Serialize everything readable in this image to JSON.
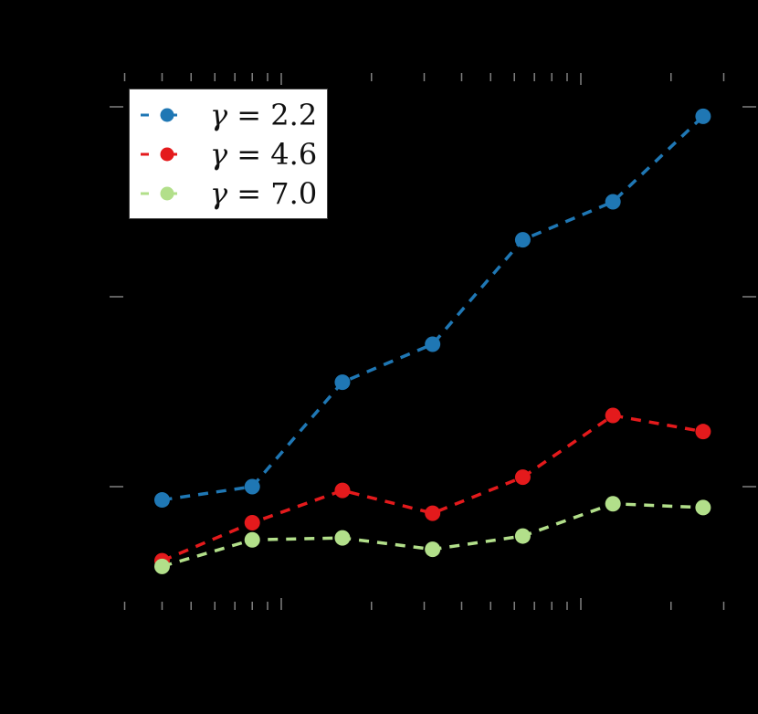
{
  "chart_data": {
    "type": "line",
    "title": "",
    "xlabel": "",
    "ylabel": "",
    "xscale": "log",
    "x_note": "x positions double each step; shown relative to the two visible major log ticks (assumed 10^0 and 10^1 — tick labels not visible)",
    "x": [
      0.4,
      0.8,
      1.6,
      3.2,
      6.4,
      12.8,
      25.6
    ],
    "xlim": [
      0.3,
      38
    ],
    "y_note": "y tick labels not visible; values in units of the major y-tick spacing (lowest major tick = 0)",
    "yticks": [
      0,
      1,
      2
    ],
    "ylim": [
      -0.6,
      2.1
    ],
    "grid": false,
    "legend_position": "upper left",
    "series": [
      {
        "name": "γ = 2.2",
        "gamma": "2.2",
        "color": "#1f77b4",
        "linestyle": "dashed",
        "marker": "circle",
        "values": [
          -0.07,
          0.0,
          0.55,
          0.75,
          1.3,
          1.5,
          1.95
        ]
      },
      {
        "name": "γ = 4.6",
        "gamma": "4.6",
        "color": "#e41a1c",
        "linestyle": "dashed",
        "marker": "circle",
        "values": [
          -0.39,
          -0.19,
          -0.02,
          -0.14,
          0.05,
          0.375,
          0.29
        ]
      },
      {
        "name": "γ = 7.0",
        "gamma": "7.0",
        "color": "#b2df8a",
        "linestyle": "dashed",
        "marker": "circle",
        "values": [
          -0.42,
          -0.28,
          -0.27,
          -0.33,
          -0.26,
          -0.09,
          -0.11
        ]
      }
    ]
  },
  "legend": {
    "items": [
      {
        "symbol": "γ",
        "equals": "=",
        "value": "2.2",
        "color": "#1f77b4"
      },
      {
        "symbol": "γ",
        "equals": "=",
        "value": "4.6",
        "color": "#e41a1c"
      },
      {
        "symbol": "γ",
        "equals": "=",
        "value": "7.0",
        "color": "#b2df8a"
      }
    ]
  },
  "colors": {
    "background": "#000000",
    "ticks": "#808080",
    "legend_bg": "#ffffff"
  }
}
